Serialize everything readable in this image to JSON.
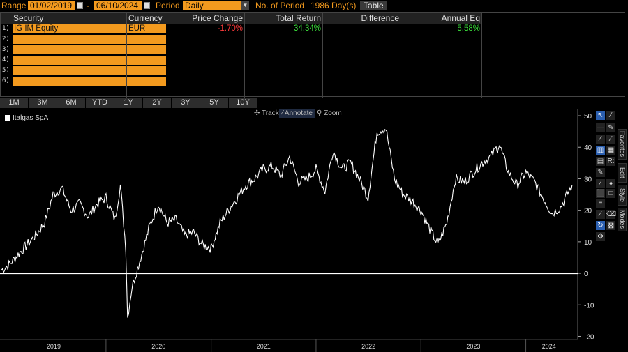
{
  "topbar": {
    "range_label": "Range",
    "start_date": "01/02/2019",
    "dash": "-",
    "end_date": "06/10/2024",
    "period_label": "Period",
    "period_value": "Daily",
    "num_period_label": "No. of Period",
    "num_period_value": "1986 Day(s)",
    "table_button": "Table"
  },
  "table": {
    "headers": [
      "Security",
      "Currency",
      "Price Change",
      "Total Return",
      "Difference",
      "Annual Eq"
    ],
    "rows": [
      {
        "index": "1)",
        "security": "IG IM Equity",
        "currency": "EUR",
        "price_change": "-1.70%",
        "total_return": "34.34%",
        "difference": "",
        "annual_eq": "5.58%"
      },
      {
        "index": "2)"
      },
      {
        "index": "3)"
      },
      {
        "index": "4)"
      },
      {
        "index": "5)"
      },
      {
        "index": "6)"
      }
    ],
    "colors": {
      "negative": "#ff3b3b",
      "positive": "#3be03b",
      "accent": "#f39a1e"
    }
  },
  "periods": [
    "1M",
    "3M",
    "6M",
    "YTD",
    "1Y",
    "2Y",
    "3Y",
    "5Y",
    "10Y"
  ],
  "chart_tools": {
    "track": "Track",
    "annotate": "Annotate",
    "zoom": "Zoom"
  },
  "right_tabs": {
    "favorites": "Favorites",
    "edit": "Edit",
    "style": "Style",
    "modes": "Modes"
  },
  "right_glyphs": {
    "r": "R:"
  },
  "chart_data": {
    "type": "line",
    "legend": [
      "Italgas SpA"
    ],
    "ylim": [
      -21,
      52
    ],
    "yticks": [
      -20,
      -10,
      0,
      10,
      20,
      30,
      40,
      50
    ],
    "xlabels": [
      "2019",
      "2020",
      "2021",
      "2022",
      "2023",
      "2024"
    ],
    "series": [
      {
        "name": "Italgas SpA",
        "color": "#ffffff",
        "x": [
          "2019-01-02",
          "2019-02-01",
          "2019-03-01",
          "2019-04-01",
          "2019-05-01",
          "2019-06-01",
          "2019-07-01",
          "2019-08-01",
          "2019-09-01",
          "2019-10-01",
          "2019-11-01",
          "2019-12-01",
          "2020-01-01",
          "2020-02-01",
          "2020-02-20",
          "2020-03-10",
          "2020-03-16",
          "2020-04-01",
          "2020-05-01",
          "2020-06-01",
          "2020-07-01",
          "2020-08-01",
          "2020-09-01",
          "2020-10-01",
          "2020-11-01",
          "2020-12-01",
          "2021-01-01",
          "2021-02-01",
          "2021-03-01",
          "2021-04-01",
          "2021-05-01",
          "2021-06-01",
          "2021-07-01",
          "2021-08-01",
          "2021-09-01",
          "2021-10-01",
          "2021-11-01",
          "2021-12-01",
          "2022-01-01",
          "2022-02-01",
          "2022-03-01",
          "2022-04-01",
          "2022-05-01",
          "2022-06-01",
          "2022-07-01",
          "2022-08-01",
          "2022-09-01",
          "2022-10-01",
          "2022-11-01",
          "2022-12-01",
          "2023-01-01",
          "2023-02-01",
          "2023-03-01",
          "2023-04-01",
          "2023-05-01",
          "2023-06-01",
          "2023-07-01",
          "2023-08-01",
          "2023-09-01",
          "2023-10-01",
          "2023-11-01",
          "2023-12-01",
          "2024-01-01",
          "2024-02-01",
          "2024-03-01",
          "2024-04-01",
          "2024-05-01",
          "2024-06-10"
        ],
        "y": [
          1,
          3,
          6,
          9,
          12,
          16,
          25,
          27,
          20,
          22,
          18,
          22,
          24,
          17,
          28,
          8,
          -14,
          -4,
          5,
          15,
          22,
          16,
          17,
          12,
          13,
          9,
          8,
          16,
          20,
          24,
          28,
          30,
          33,
          34,
          31,
          37,
          29,
          30,
          33,
          26,
          39,
          33,
          35,
          30,
          24,
          45,
          46,
          30,
          25,
          23,
          20,
          14,
          9,
          16,
          30,
          29,
          32,
          35,
          37,
          41,
          32,
          28,
          32,
          29,
          24,
          19,
          21,
          28
        ]
      }
    ]
  }
}
